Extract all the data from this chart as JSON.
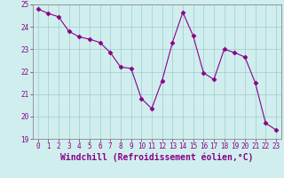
{
  "x": [
    0,
    1,
    2,
    3,
    4,
    5,
    6,
    7,
    8,
    9,
    10,
    11,
    12,
    13,
    14,
    15,
    16,
    17,
    18,
    19,
    20,
    21,
    22,
    23
  ],
  "y": [
    24.8,
    24.6,
    24.45,
    23.8,
    23.55,
    23.45,
    23.3,
    22.85,
    22.2,
    22.15,
    20.8,
    20.35,
    21.6,
    23.3,
    24.65,
    23.6,
    21.95,
    21.65,
    23.0,
    22.85,
    22.65,
    21.5,
    19.7,
    19.4
  ],
  "line_color": "#880088",
  "marker": "D",
  "marker_size": 2.5,
  "bg_color": "#d0eeee",
  "grid_color": "#a0cccc",
  "xlabel": "Windchill (Refroidissement éolien,°C)",
  "ylim": [
    19,
    25
  ],
  "xlim": [
    -0.5,
    23.5
  ],
  "yticks": [
    19,
    20,
    21,
    22,
    23,
    24,
    25
  ],
  "xticks": [
    0,
    1,
    2,
    3,
    4,
    5,
    6,
    7,
    8,
    9,
    10,
    11,
    12,
    13,
    14,
    15,
    16,
    17,
    18,
    19,
    20,
    21,
    22,
    23
  ],
  "tick_color": "#880088",
  "tick_fontsize": 5.5,
  "xlabel_fontsize": 7.0,
  "spine_color": "#888888"
}
